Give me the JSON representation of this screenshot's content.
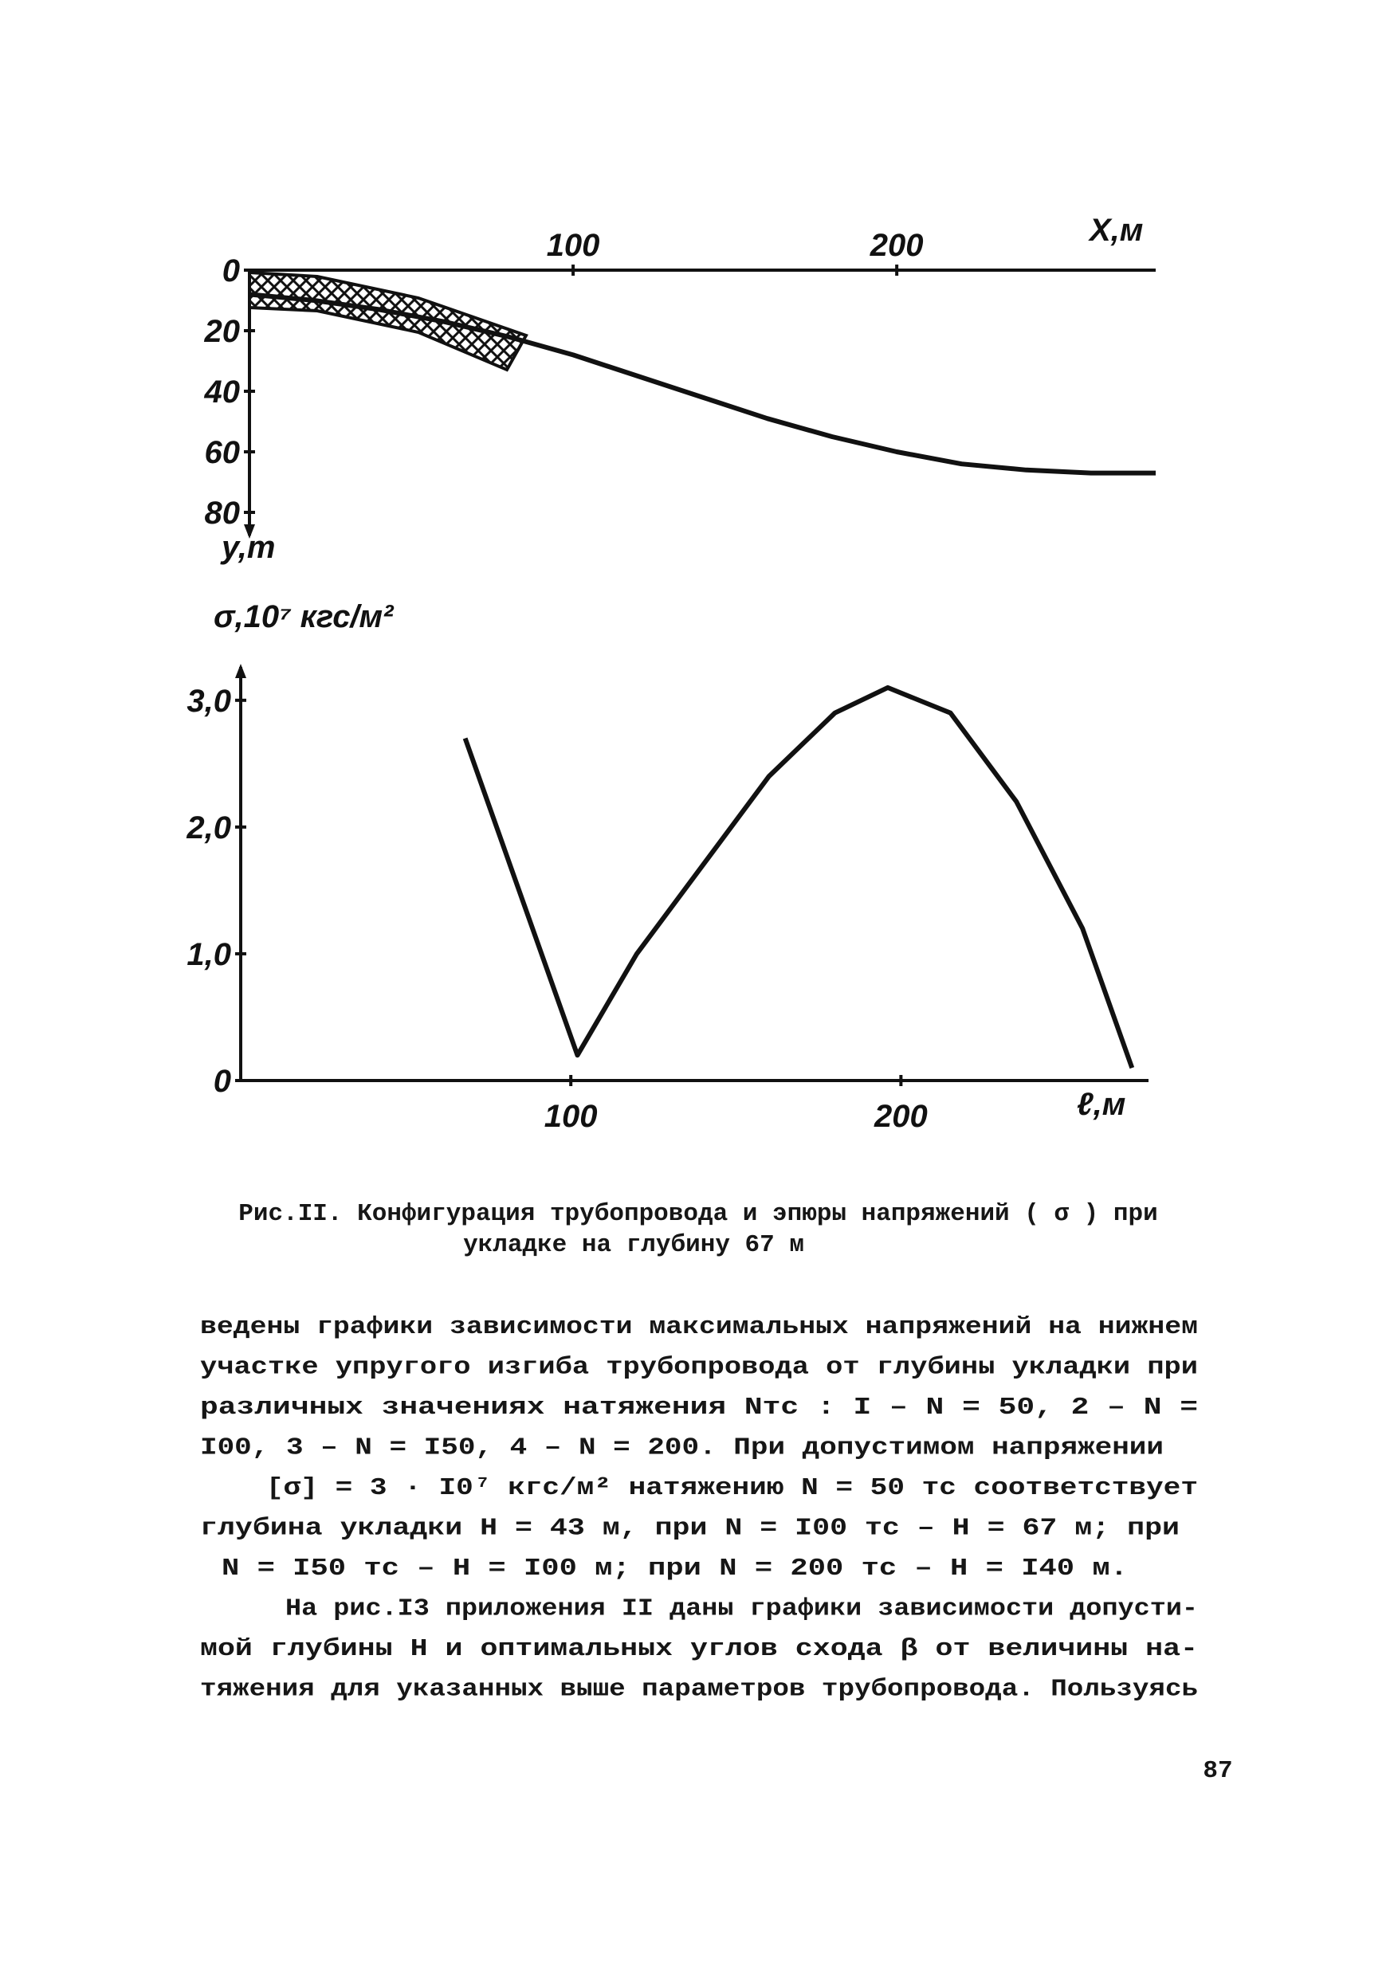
{
  "chart_data": [
    {
      "type": "line",
      "x_label": "X,м",
      "y_label": "y,m",
      "xaxis_position": "top",
      "yaxis_direction": "down",
      "x": [
        0,
        20,
        40,
        60,
        80,
        100,
        120,
        140,
        160,
        180,
        200,
        220,
        240,
        260,
        280
      ],
      "values": [
        8,
        10,
        13,
        17,
        22,
        28,
        35,
        42,
        49,
        55,
        60,
        64,
        66,
        67,
        67
      ],
      "color": "#111111",
      "xlim": [
        0,
        280
      ],
      "ylim": [
        0,
        85
      ],
      "xticks": [
        100,
        200
      ],
      "yticks": [
        0,
        20,
        40,
        60,
        80
      ]
    },
    {
      "type": "line",
      "x_label": "ℓ,м",
      "y_label": "σ,10⁷ кгс/м²",
      "xaxis_position": "bottom",
      "yaxis_direction": "up",
      "x": [
        68,
        102,
        120,
        140,
        160,
        180,
        196,
        215,
        235,
        255,
        270
      ],
      "values": [
        2.7,
        0.2,
        1.0,
        1.7,
        2.4,
        2.9,
        3.1,
        2.9,
        2.2,
        1.2,
        0.1
      ],
      "color": "#111111",
      "xlim": [
        0,
        275
      ],
      "ylim": [
        0,
        3.2
      ],
      "xticks": [
        100,
        200
      ],
      "yticks": [
        0,
        {
          "value": 1,
          "label": "1,0"
        },
        {
          "value": 2,
          "label": "2,0"
        },
        {
          "value": 3,
          "label": "3,0"
        }
      ]
    }
  ],
  "caption": [
    "Рис.II. Конфигурация трубопровода и эпюры напряжений ( σ ) при",
    "укладке на глубину 67 м"
  ],
  "text_lines": [
    "ведены графики зависимости максимальных напряжений на нижнем",
    "участке упругого изгиба трубопровода от глубины укладки при",
    "различных значениях натяжения Nтс : I – N = 50, 2 – N =",
    "I00, 3 – N = I50, 4 – N = 200. При допустимом напряжении",
    "[σ] = 3 · I0⁷ кгс/м² натяжению N = 50 тс соответствует",
    "глубина укладки Н = 43 м, при N = I00 тс – Н = 67 м; при",
    "N = I50 тс – Н = I00 м; при N = 200 тс – Н = I40 м.",
    "На рис.I3 приложения II даны графики зависимости допусти-",
    "мой глубины Н и оптимальных углов схода β от величины на-",
    "тяжения для указанных выше параметров трубопровода. Пользуясь"
  ],
  "page_number": "87"
}
